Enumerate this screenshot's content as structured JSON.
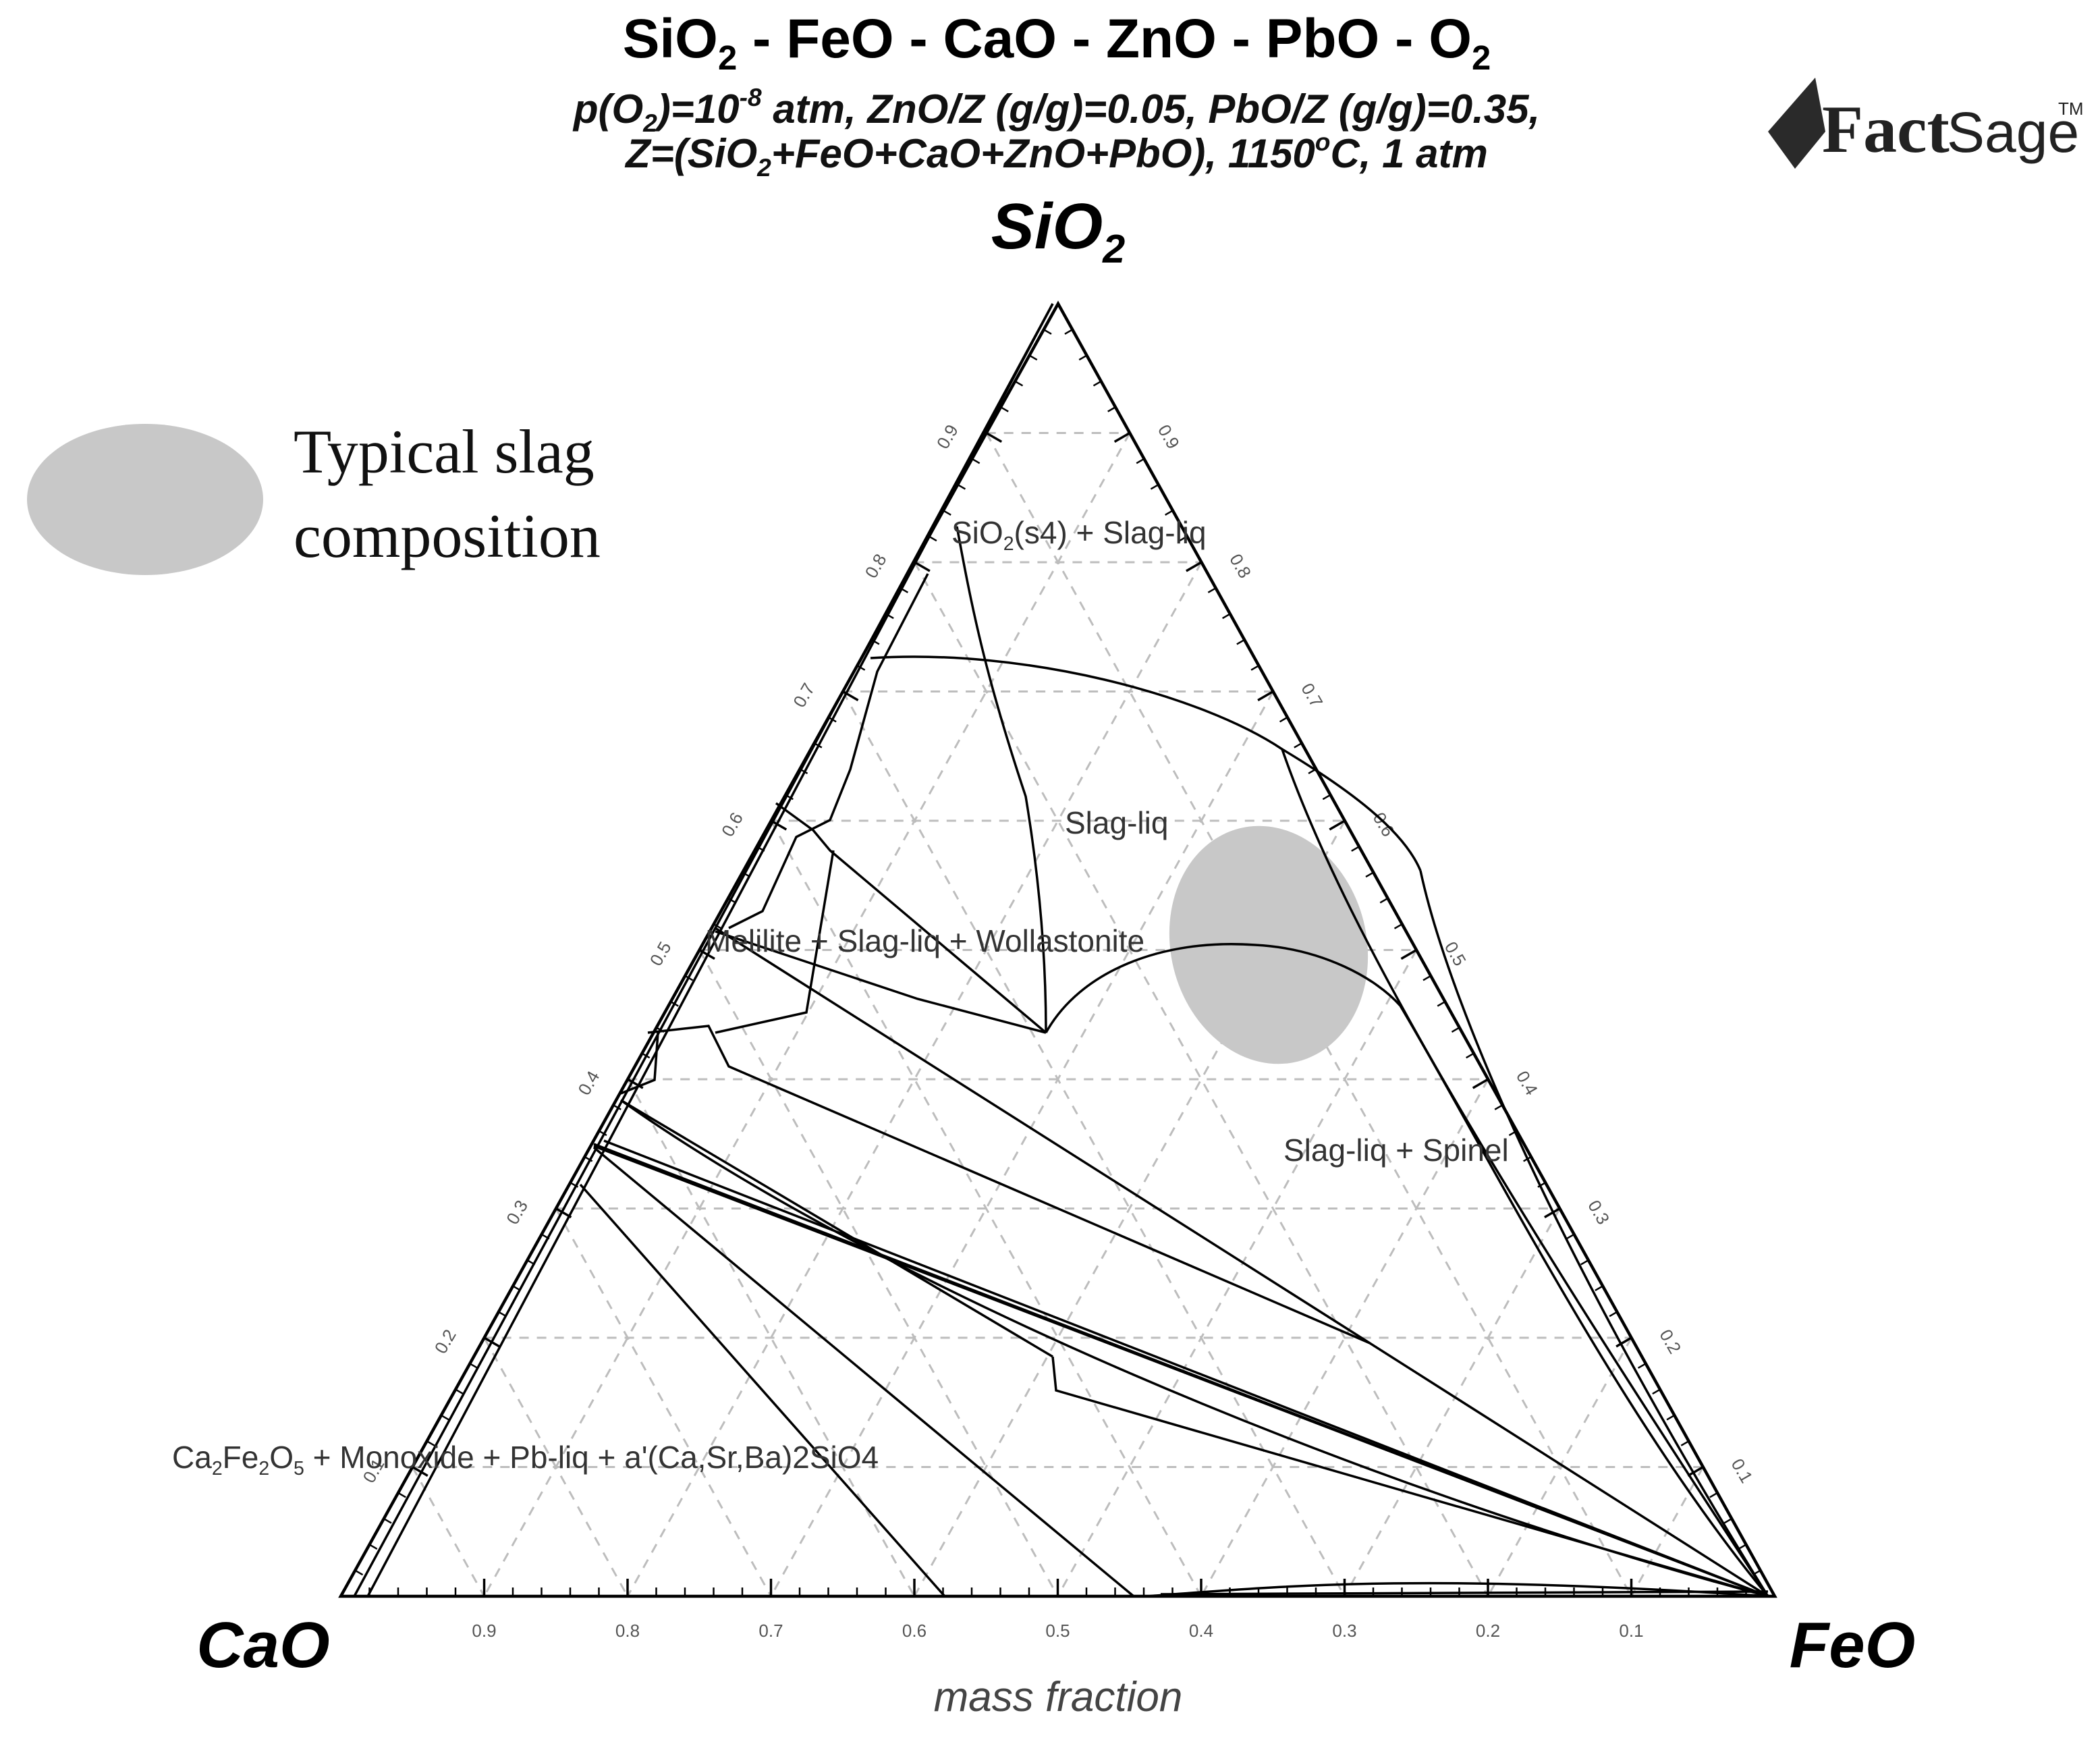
{
  "title": {
    "parts": [
      {
        "t": "SiO"
      },
      {
        "sub": "2"
      },
      {
        "t": " - FeO - CaO - ZnO - PbO - O"
      },
      {
        "sub": "2"
      }
    ]
  },
  "subtitle_line1": {
    "parts": [
      {
        "t": "p(O"
      },
      {
        "sub": "2"
      },
      {
        "t": ")=10"
      },
      {
        "sup": "-8"
      },
      {
        "t": " atm, ZnO/Z (g/g)=0.05, PbO/Z (g/g)=0.35,"
      }
    ]
  },
  "subtitle_line2": {
    "parts": [
      {
        "t": "Z=(SiO"
      },
      {
        "sub": "2"
      },
      {
        "t": "+FeO+CaO+ZnO+PbO), 1150"
      },
      {
        "sup": "o"
      },
      {
        "t": "C, 1 atm"
      }
    ]
  },
  "logo": {
    "fact": "Fact",
    "sage": "Sage",
    "tm": "TM"
  },
  "vertices": {
    "top": {
      "parts": [
        {
          "t": "SiO"
        },
        {
          "sub": "2"
        }
      ]
    },
    "left": {
      "parts": [
        {
          "t": "CaO"
        }
      ]
    },
    "right": {
      "parts": [
        {
          "t": "FeO"
        }
      ]
    }
  },
  "axis_label": "mass fraction",
  "legend": {
    "line1": "Typical slag",
    "line2": "composition",
    "color": "#c8c8c8"
  },
  "ticks": [
    "0.9",
    "0.8",
    "0.7",
    "0.6",
    "0.5",
    "0.4",
    "0.3",
    "0.2",
    "0.1"
  ],
  "regions": [
    {
      "parts": [
        {
          "t": "SiO"
        },
        {
          "sub": "2"
        },
        {
          "t": "(s4) + Slag-liq"
        }
      ]
    },
    {
      "parts": [
        {
          "t": "Slag-liq"
        }
      ]
    },
    {
      "parts": [
        {
          "t": "Melilite + Slag-liq + Wollastonite"
        }
      ]
    },
    {
      "parts": [
        {
          "t": "Slag-liq + Spinel"
        }
      ]
    },
    {
      "parts": [
        {
          "t": "Ca"
        },
        {
          "sub": "2"
        },
        {
          "t": "Fe"
        },
        {
          "sub": "2"
        },
        {
          "t": "O"
        },
        {
          "sub": "5"
        },
        {
          "t": " + Monoxide + Pb-liq + a'(Ca,Sr,Ba)2SiO4"
        }
      ]
    }
  ],
  "chart_data": {
    "type": "ternary",
    "vertices": [
      "SiO2",
      "CaO",
      "FeO"
    ],
    "grid_step": 0.1,
    "typical_slag_region": {
      "SiO2": 0.475,
      "CaO": 0.14,
      "FeO": 0.385
    }
  }
}
